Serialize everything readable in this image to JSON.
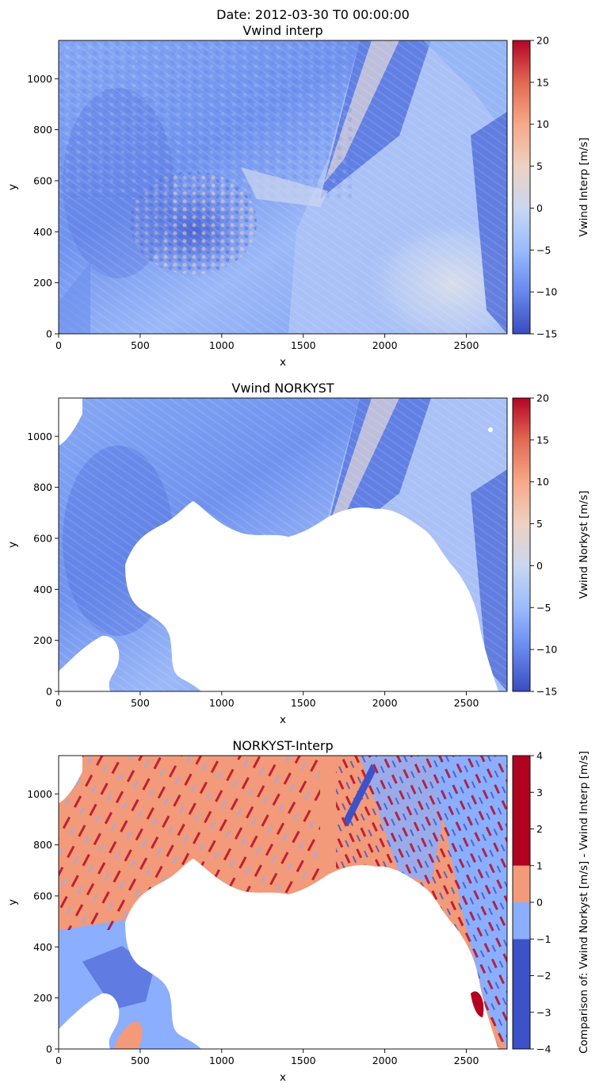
{
  "figure": {
    "suptitle": "Date: 2012-03-30 T0 00:00:00"
  },
  "chart_data": [
    {
      "type": "heatmap",
      "title": "Vwind interp",
      "xlabel": "x",
      "ylabel": "y",
      "xlim": [
        0,
        2750
      ],
      "ylim": [
        0,
        1150
      ],
      "x_ticks": [
        0,
        500,
        1000,
        1500,
        2000,
        2500
      ],
      "y_ticks": [
        0,
        200,
        400,
        600,
        800,
        1000
      ],
      "colormap": "coolwarm",
      "colorbar": {
        "label": "Vwind Interp [m/s]",
        "range": [
          -15,
          20
        ],
        "ticks": [
          -15,
          -10,
          -5,
          0,
          5,
          10,
          15,
          20
        ],
        "tick_labels": [
          "−15",
          "−10",
          "−5",
          "0",
          "5",
          "10",
          "15",
          "20"
        ]
      },
      "grid": false
    },
    {
      "type": "heatmap",
      "title": "Vwind NORKYST",
      "xlabel": "x",
      "ylabel": "y",
      "xlim": [
        0,
        2750
      ],
      "ylim": [
        0,
        1150
      ],
      "x_ticks": [
        0,
        500,
        1000,
        1500,
        2000,
        2500
      ],
      "y_ticks": [
        0,
        200,
        400,
        600,
        800,
        1000
      ],
      "colormap": "coolwarm",
      "masked_land": true,
      "colorbar": {
        "label": "Vwind Norkyst [m/s]",
        "range": [
          -15,
          20
        ],
        "ticks": [
          -15,
          -10,
          -5,
          0,
          5,
          10,
          15,
          20
        ],
        "tick_labels": [
          "−15",
          "−10",
          "−5",
          "0",
          "5",
          "10",
          "15",
          "20"
        ]
      },
      "grid": false
    },
    {
      "type": "heatmap",
      "title": "NORKYST-Interp",
      "xlabel": "x",
      "ylabel": "y",
      "xlim": [
        0,
        2750
      ],
      "ylim": [
        0,
        1150
      ],
      "x_ticks": [
        0,
        500,
        1000,
        1500,
        2000,
        2500
      ],
      "y_ticks": [
        0,
        200,
        400,
        600,
        800,
        1000
      ],
      "colormap": "coolwarm (discrete)",
      "masked_land": true,
      "colorbar": {
        "label": "Comparison of: Vwind Norkyst [m/s] - Vwind Interp [m/s]",
        "range": [
          -4,
          4
        ],
        "ticks": [
          -4,
          -3,
          -2,
          -1,
          0,
          1,
          2,
          3,
          4
        ],
        "tick_labels": [
          "−4",
          "−3",
          "−2",
          "−1",
          "0",
          "1",
          "2",
          "3",
          "4"
        ],
        "bins": [
          {
            "from": -4,
            "to": -1,
            "color": "#3d52c8"
          },
          {
            "from": -1,
            "to": 0,
            "color": "#8caefe"
          },
          {
            "from": 0,
            "to": 1,
            "color": "#f29a7a"
          },
          {
            "from": 1,
            "to": 4,
            "color": "#b2021f"
          }
        ]
      },
      "grid": false
    }
  ],
  "colors": {
    "cmap_coolwarm": [
      "#3b4cc0",
      "#6788ee",
      "#9abbff",
      "#c9d7f0",
      "#edd1c2",
      "#f7a889",
      "#e26952",
      "#b40426"
    ],
    "field_main": "#7b9ff2",
    "field_dark": "#4f6bd8",
    "field_light": "#c3d4f5",
    "land": "#ffffff",
    "diff_dark_blue": "#3d52c8",
    "diff_light_blue": "#8caefe",
    "diff_salmon": "#f29a7a",
    "diff_red": "#b2021f"
  }
}
